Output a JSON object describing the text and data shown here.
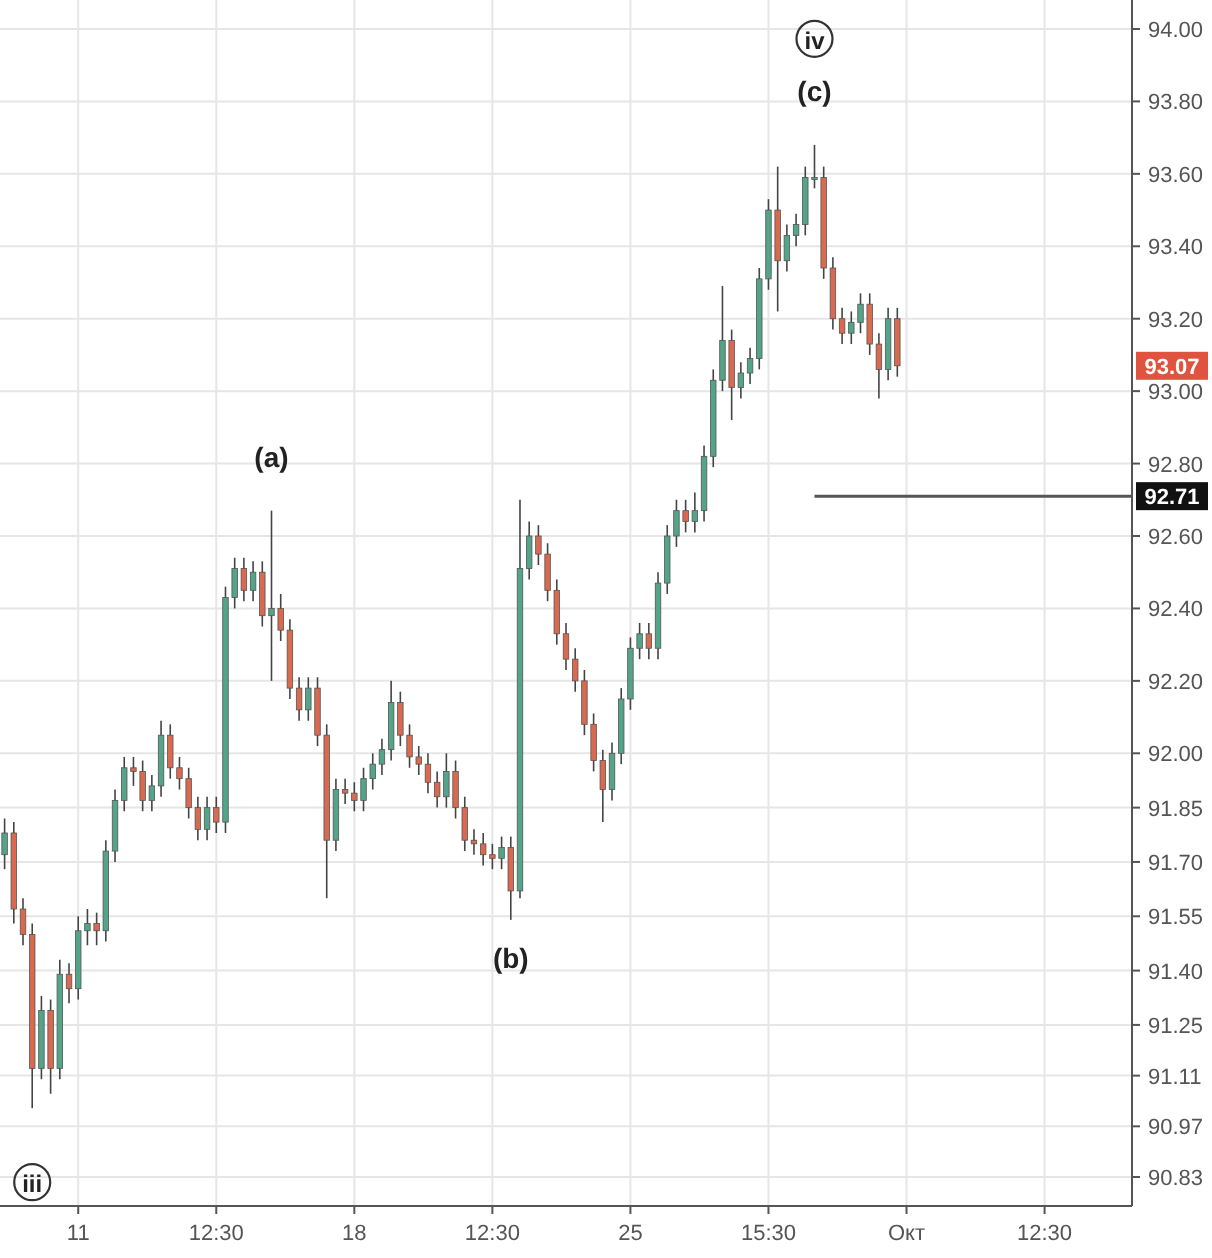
{
  "chart_data": {
    "type": "candlestick",
    "categories": [
      null,
      null,
      null,
      null,
      null,
      null,
      null,
      null,
      "11",
      null,
      null,
      null,
      null,
      null,
      null,
      null,
      null,
      null,
      null,
      null,
      null,
      null,
      null,
      "12:30",
      null,
      null,
      null,
      null,
      null,
      null,
      null,
      null,
      null,
      null,
      null,
      null,
      null,
      null,
      "18",
      null,
      null,
      null,
      null,
      null,
      null,
      null,
      null,
      null,
      null,
      null,
      null,
      null,
      null,
      "12:30",
      null,
      null,
      null,
      null,
      null,
      null,
      null,
      null,
      null,
      null,
      null,
      null,
      null,
      null,
      "25",
      null,
      null,
      null,
      null,
      null,
      null,
      null,
      null,
      null,
      null,
      null,
      null,
      null,
      null,
      "15:30",
      null,
      null,
      null,
      null,
      null,
      null,
      null,
      null,
      null,
      null,
      null,
      null,
      null,
      null,
      "Окт",
      null,
      null,
      null,
      null,
      null,
      null,
      null,
      null,
      null,
      null,
      null,
      null,
      null,
      null,
      "12:30",
      null,
      null,
      null,
      null,
      null,
      null,
      null,
      null,
      null
    ],
    "ohlc": [
      [
        91.72,
        91.82,
        91.68,
        91.78
      ],
      [
        91.78,
        91.81,
        91.53,
        91.57
      ],
      [
        91.57,
        91.6,
        91.47,
        91.5
      ],
      [
        91.5,
        91.53,
        91.02,
        91.13
      ],
      [
        91.13,
        91.33,
        91.1,
        91.29
      ],
      [
        91.29,
        91.32,
        91.06,
        91.13
      ],
      [
        91.13,
        91.43,
        91.1,
        91.39
      ],
      [
        91.39,
        91.42,
        91.31,
        91.35
      ],
      [
        91.35,
        91.55,
        91.32,
        91.51
      ],
      [
        91.51,
        91.57,
        91.47,
        91.53
      ],
      [
        91.53,
        91.56,
        91.47,
        91.51
      ],
      [
        91.51,
        91.76,
        91.48,
        91.73
      ],
      [
        91.73,
        91.9,
        91.7,
        91.87
      ],
      [
        91.87,
        91.99,
        91.84,
        91.96
      ],
      [
        91.96,
        91.99,
        91.91,
        91.95
      ],
      [
        91.95,
        91.98,
        91.84,
        91.87
      ],
      [
        91.87,
        91.94,
        91.84,
        91.91
      ],
      [
        91.91,
        92.09,
        91.88,
        92.05
      ],
      [
        92.05,
        92.08,
        91.93,
        91.96
      ],
      [
        91.96,
        91.99,
        91.9,
        91.93
      ],
      [
        91.93,
        91.96,
        91.82,
        91.85
      ],
      [
        91.85,
        91.88,
        91.76,
        91.79
      ],
      [
        91.79,
        91.88,
        91.76,
        91.85
      ],
      [
        91.85,
        91.88,
        91.78,
        91.81
      ],
      [
        91.81,
        92.46,
        91.78,
        92.43
      ],
      [
        92.43,
        92.54,
        92.4,
        92.51
      ],
      [
        92.51,
        92.54,
        92.42,
        92.45
      ],
      [
        92.45,
        92.53,
        92.42,
        92.5
      ],
      [
        92.5,
        92.53,
        92.35,
        92.38
      ],
      [
        92.38,
        92.67,
        92.2,
        92.4
      ],
      [
        92.4,
        92.44,
        92.31,
        92.34
      ],
      [
        92.34,
        92.37,
        92.15,
        92.18
      ],
      [
        92.18,
        92.21,
        92.09,
        92.12
      ],
      [
        92.12,
        92.21,
        92.09,
        92.18
      ],
      [
        92.18,
        92.21,
        92.02,
        92.05
      ],
      [
        92.05,
        92.08,
        91.6,
        91.76
      ],
      [
        91.76,
        91.93,
        91.73,
        91.9
      ],
      [
        91.9,
        91.93,
        91.86,
        91.89
      ],
      [
        91.89,
        91.92,
        91.84,
        91.87
      ],
      [
        91.87,
        91.96,
        91.84,
        91.93
      ],
      [
        91.93,
        92.0,
        91.9,
        91.97
      ],
      [
        91.97,
        92.04,
        91.94,
        92.01
      ],
      [
        92.01,
        92.2,
        91.98,
        92.14
      ],
      [
        92.14,
        92.17,
        92.02,
        92.05
      ],
      [
        92.05,
        92.08,
        91.96,
        91.99
      ],
      [
        91.99,
        92.02,
        91.94,
        91.97
      ],
      [
        91.97,
        92.0,
        91.89,
        91.92
      ],
      [
        91.92,
        91.95,
        91.85,
        91.88
      ],
      [
        91.88,
        92.0,
        91.85,
        91.95
      ],
      [
        91.95,
        91.98,
        91.82,
        91.85
      ],
      [
        91.85,
        91.88,
        91.73,
        91.76
      ],
      [
        91.76,
        91.79,
        91.72,
        91.75
      ],
      [
        91.75,
        91.78,
        91.69,
        91.72
      ],
      [
        91.72,
        91.75,
        91.68,
        91.71
      ],
      [
        91.71,
        91.77,
        91.68,
        91.74
      ],
      [
        91.74,
        91.77,
        91.54,
        91.62
      ],
      [
        91.62,
        92.7,
        91.6,
        92.51
      ],
      [
        92.51,
        92.64,
        92.48,
        92.6
      ],
      [
        92.6,
        92.63,
        92.52,
        92.55
      ],
      [
        92.55,
        92.58,
        92.42,
        92.45
      ],
      [
        92.45,
        92.48,
        92.3,
        92.33
      ],
      [
        92.33,
        92.36,
        92.23,
        92.26
      ],
      [
        92.26,
        92.29,
        92.17,
        92.2
      ],
      [
        92.2,
        92.23,
        92.05,
        92.08
      ],
      [
        92.08,
        92.11,
        91.95,
        91.98
      ],
      [
        91.98,
        92.01,
        91.81,
        91.9
      ],
      [
        91.9,
        92.03,
        91.87,
        92.0
      ],
      [
        92.0,
        92.18,
        91.97,
        92.15
      ],
      [
        92.15,
        92.32,
        92.12,
        92.29
      ],
      [
        92.29,
        92.36,
        92.26,
        92.33
      ],
      [
        92.33,
        92.36,
        92.26,
        92.29
      ],
      [
        92.29,
        92.5,
        92.26,
        92.47
      ],
      [
        92.47,
        92.63,
        92.44,
        92.6
      ],
      [
        92.6,
        92.7,
        92.57,
        92.67
      ],
      [
        92.67,
        92.7,
        92.61,
        92.64
      ],
      [
        92.64,
        92.72,
        92.61,
        92.67
      ],
      [
        92.67,
        92.85,
        92.64,
        92.82
      ],
      [
        92.82,
        93.06,
        92.79,
        93.03
      ],
      [
        93.03,
        93.29,
        93.0,
        93.14
      ],
      [
        93.14,
        93.17,
        92.92,
        93.01
      ],
      [
        93.01,
        93.08,
        92.98,
        93.05
      ],
      [
        93.05,
        93.12,
        93.02,
        93.09
      ],
      [
        93.09,
        93.34,
        93.06,
        93.31
      ],
      [
        93.31,
        93.53,
        93.28,
        93.5
      ],
      [
        93.5,
        93.62,
        93.22,
        93.36
      ],
      [
        93.36,
        93.46,
        93.33,
        93.43
      ],
      [
        93.43,
        93.49,
        93.4,
        93.46
      ],
      [
        93.46,
        93.62,
        93.43,
        93.59
      ],
      [
        93.59,
        93.68,
        93.56,
        93.59
      ],
      [
        93.59,
        93.62,
        93.31,
        93.34
      ],
      [
        93.34,
        93.37,
        93.17,
        93.2
      ],
      [
        93.2,
        93.23,
        93.13,
        93.16
      ],
      [
        93.16,
        93.22,
        93.13,
        93.19
      ],
      [
        93.19,
        93.27,
        93.16,
        93.24
      ],
      [
        93.24,
        93.27,
        93.1,
        93.13
      ],
      [
        93.13,
        93.16,
        92.98,
        93.06
      ],
      [
        93.06,
        93.23,
        93.03,
        93.2
      ],
      [
        93.2,
        93.23,
        93.04,
        93.07
      ],
      null,
      null,
      null,
      null,
      null,
      null,
      null,
      null,
      null,
      null,
      null,
      null,
      null,
      null,
      null,
      null,
      null,
      null,
      null,
      null,
      null,
      null,
      null,
      null,
      null
    ],
    "ylim": [
      90.75,
      94.08
    ],
    "yticks": [
      {
        "value": 94,
        "label": "94.00"
      },
      {
        "value": 93.8,
        "label": "93.80"
      },
      {
        "value": 93.6,
        "label": "93.60"
      },
      {
        "value": 93.4,
        "label": "93.40"
      },
      {
        "value": 93.2,
        "label": "93.20"
      },
      {
        "value": 93,
        "label": "93.00"
      },
      {
        "value": 92.8,
        "label": "92.80"
      },
      {
        "value": 92.6,
        "label": "92.60"
      },
      {
        "value": 92.4,
        "label": "92.40"
      },
      {
        "value": 92.2,
        "label": "92.20"
      },
      {
        "value": 92,
        "label": "92.00"
      },
      91.85,
      {
        "value": 91.7,
        "label": "91.70"
      },
      91.55,
      {
        "value": 91.4,
        "label": "91.40"
      },
      91.25,
      91.11,
      90.97,
      90.83
    ],
    "grid": true,
    "ref_lines": [
      {
        "axis": "y",
        "value": 92.71,
        "label": "92.71",
        "color": "#555555"
      }
    ],
    "annotations": [
      {
        "text": "iii",
        "y": 91.02
      },
      {
        "text": "(a)",
        "y": 92.67
      },
      {
        "text": "(b)",
        "y": 91.54
      },
      {
        "text": "(c)",
        "y": 93.68
      },
      "iv",
      {
        "text": "93.07",
        "y": 93.07
      }
    ]
  }
}
